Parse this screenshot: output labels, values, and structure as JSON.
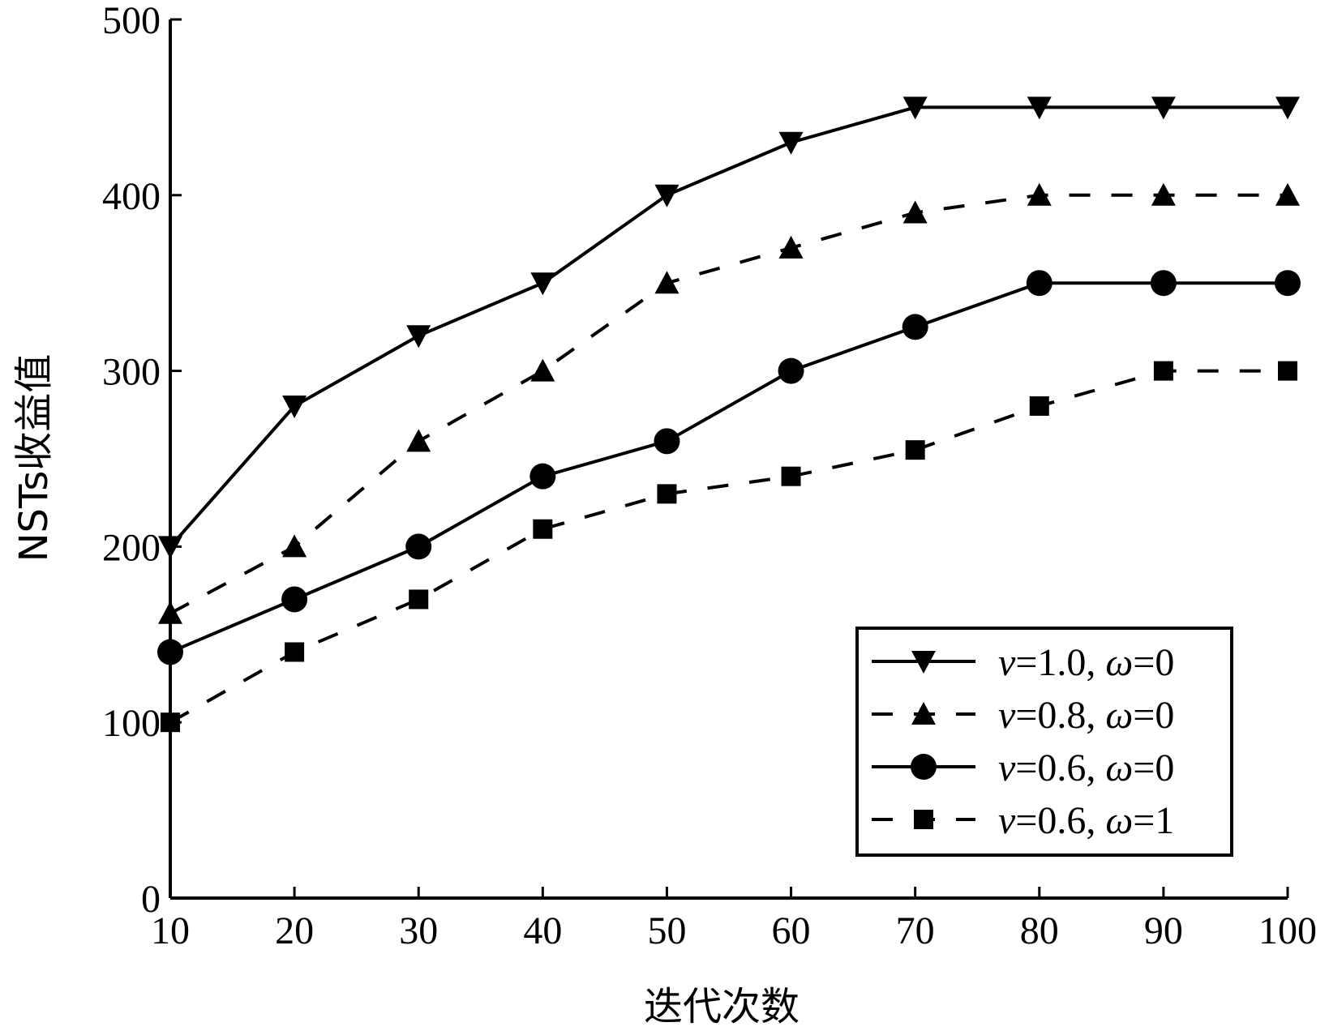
{
  "chart_data": {
    "type": "line",
    "title": "",
    "xlabel": "迭代次数",
    "ylabel": "NSTs收益值",
    "x": [
      10,
      20,
      30,
      40,
      50,
      60,
      70,
      80,
      90,
      100
    ],
    "xlim": [
      10,
      100
    ],
    "ylim": [
      0,
      500
    ],
    "x_ticks": [
      "10",
      "20",
      "30",
      "40",
      "50",
      "60",
      "70",
      "80",
      "90",
      "100"
    ],
    "y_ticks": [
      "0",
      "100",
      "200",
      "300",
      "400",
      "500"
    ],
    "grid": false,
    "legend_position": "bottom-right",
    "series": [
      {
        "symbol": "v",
        "v_value": "=1.0",
        "omega_symbol": "ω",
        "omega_value": "=0",
        "line": "solid",
        "marker": "triangle-down",
        "values": [
          200,
          280,
          320,
          350,
          400,
          430,
          450,
          450,
          450,
          450
        ]
      },
      {
        "symbol": "v",
        "v_value": "=0.8",
        "omega_symbol": "ω",
        "omega_value": "=0",
        "line": "dashed",
        "marker": "triangle-up",
        "values": [
          162,
          200,
          260,
          300,
          350,
          370,
          390,
          400,
          400,
          400
        ]
      },
      {
        "symbol": "v",
        "v_value": "=0.6",
        "omega_symbol": "ω",
        "omega_value": "=0",
        "line": "solid",
        "marker": "circle",
        "values": [
          140,
          170,
          200,
          240,
          260,
          300,
          325,
          350,
          350,
          350
        ]
      },
      {
        "symbol": "v",
        "v_value": "=0.6",
        "omega_symbol": "ω",
        "omega_value": "=1",
        "line": "dashed",
        "marker": "square",
        "values": [
          100,
          140,
          170,
          210,
          230,
          240,
          255,
          280,
          300,
          300
        ]
      }
    ]
  }
}
